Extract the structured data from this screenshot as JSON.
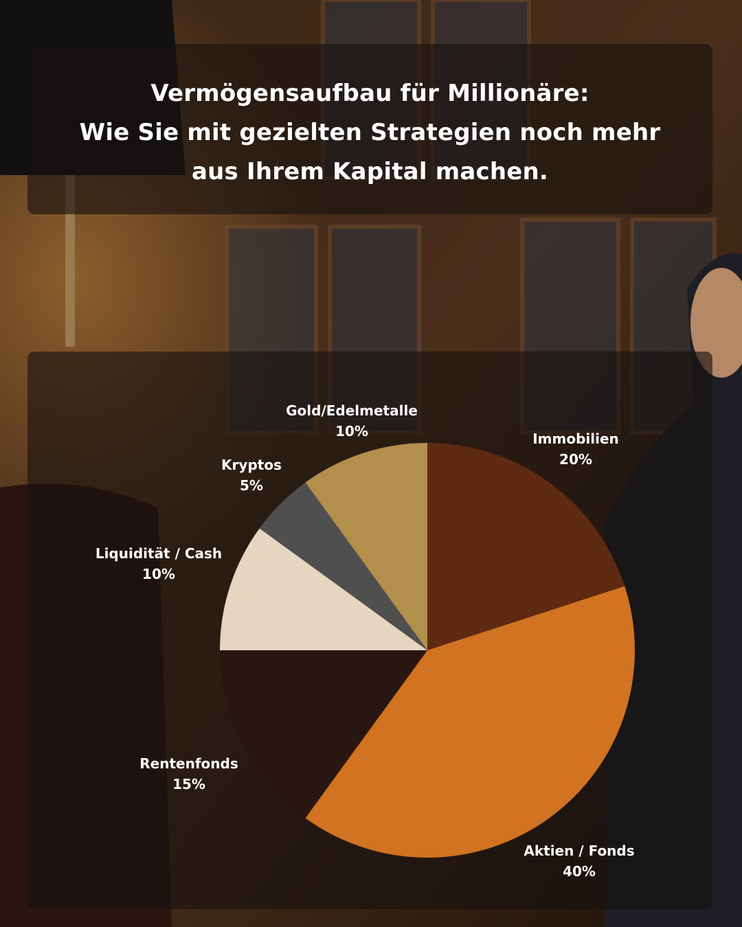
{
  "title": {
    "line1": "Vermögensaufbau für Millionäre:",
    "line2": "Wie Sie mit gezielten Strategien noch mehr",
    "line3": "aus Ihrem Kapital machen."
  },
  "chart_data": {
    "type": "pie",
    "slices": [
      {
        "label": "Immobilien",
        "value": 20,
        "value_label": "20%",
        "color": "#5e2a12"
      },
      {
        "label": "Aktien / Fonds",
        "value": 40,
        "value_label": "40%",
        "color": "#d17320"
      },
      {
        "label": "Rentenfonds",
        "value": 15,
        "value_label": "15%",
        "color": "#2a1610"
      },
      {
        "label": "Liquidität / Cash",
        "value": 10,
        "value_label": "10%",
        "color": "#e6d5bf"
      },
      {
        "label": "Kryptos",
        "value": 5,
        "value_label": "5%",
        "color": "#4f4f4f"
      },
      {
        "label": "Gold/Edelmetalle",
        "value": 10,
        "value_label": "10%",
        "color": "#b38f4c"
      }
    ],
    "start": "top (12 o'clock)",
    "direction": "clockwise"
  }
}
